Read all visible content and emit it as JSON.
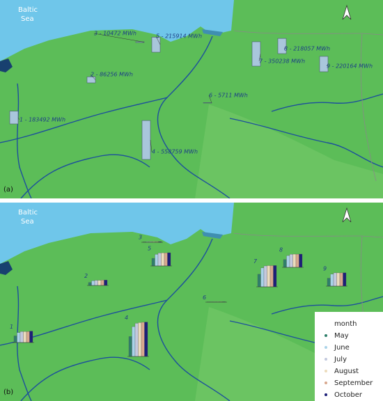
{
  "sea_label": [
    "Baltic",
    "Sea"
  ],
  "panel_a": {
    "label": "(a)",
    "sites": [
      {
        "label": "1 - 183492 MWh",
        "value": 183492
      },
      {
        "label": "2 - 86256 MWh",
        "value": 86256
      },
      {
        "label": "3 - 10472 MWh",
        "value": 10472
      },
      {
        "label": "4 - 558759 MWh",
        "value": 558759
      },
      {
        "label": "5 - 215914 MWh",
        "value": 215914
      },
      {
        "label": "6 - 5711 MWh",
        "value": 5711
      },
      {
        "label": "7 - 350238 MWh",
        "value": 350238
      },
      {
        "label": "8 - 218057 MWh",
        "value": 218057
      },
      {
        "label": "9 - 220164 MWh",
        "value": 220164
      }
    ]
  },
  "panel_b": {
    "label": "(b)",
    "legend_title": "month",
    "months": [
      {
        "name": "May",
        "color": "#2f7f6a"
      },
      {
        "name": "June",
        "color": "#a9d3e8"
      },
      {
        "name": "July",
        "color": "#c3c9de"
      },
      {
        "name": "August",
        "color": "#ecdcbc"
      },
      {
        "name": "September",
        "color": "#d8a88e"
      },
      {
        "name": "October",
        "color": "#1c1f78"
      }
    ],
    "sites": [
      {
        "label": "1",
        "values": [
          20000,
          30000,
          33000,
          33000,
          33000,
          34492
        ]
      },
      {
        "label": "2",
        "values": [
          9000,
          14000,
          15500,
          15500,
          16000,
          16256
        ]
      },
      {
        "label": "3",
        "values": [
          1100,
          1700,
          1900,
          1900,
          1900,
          1972
        ]
      },
      {
        "label": "4",
        "values": [
          60000,
          90000,
          100000,
          102000,
          103000,
          103759
        ]
      },
      {
        "label": "5",
        "values": [
          23000,
          35000,
          39000,
          39500,
          39500,
          39914
        ]
      },
      {
        "label": "6",
        "values": [
          600,
          900,
          1050,
          1050,
          1050,
          1061
        ]
      },
      {
        "label": "7",
        "values": [
          38000,
          57000,
          63000,
          64000,
          64000,
          64238
        ]
      },
      {
        "label": "8",
        "values": [
          23500,
          35500,
          39500,
          39800,
          39800,
          39957
        ]
      },
      {
        "label": "9",
        "values": [
          24000,
          36000,
          40000,
          40000,
          40000,
          40164
        ]
      }
    ]
  }
}
